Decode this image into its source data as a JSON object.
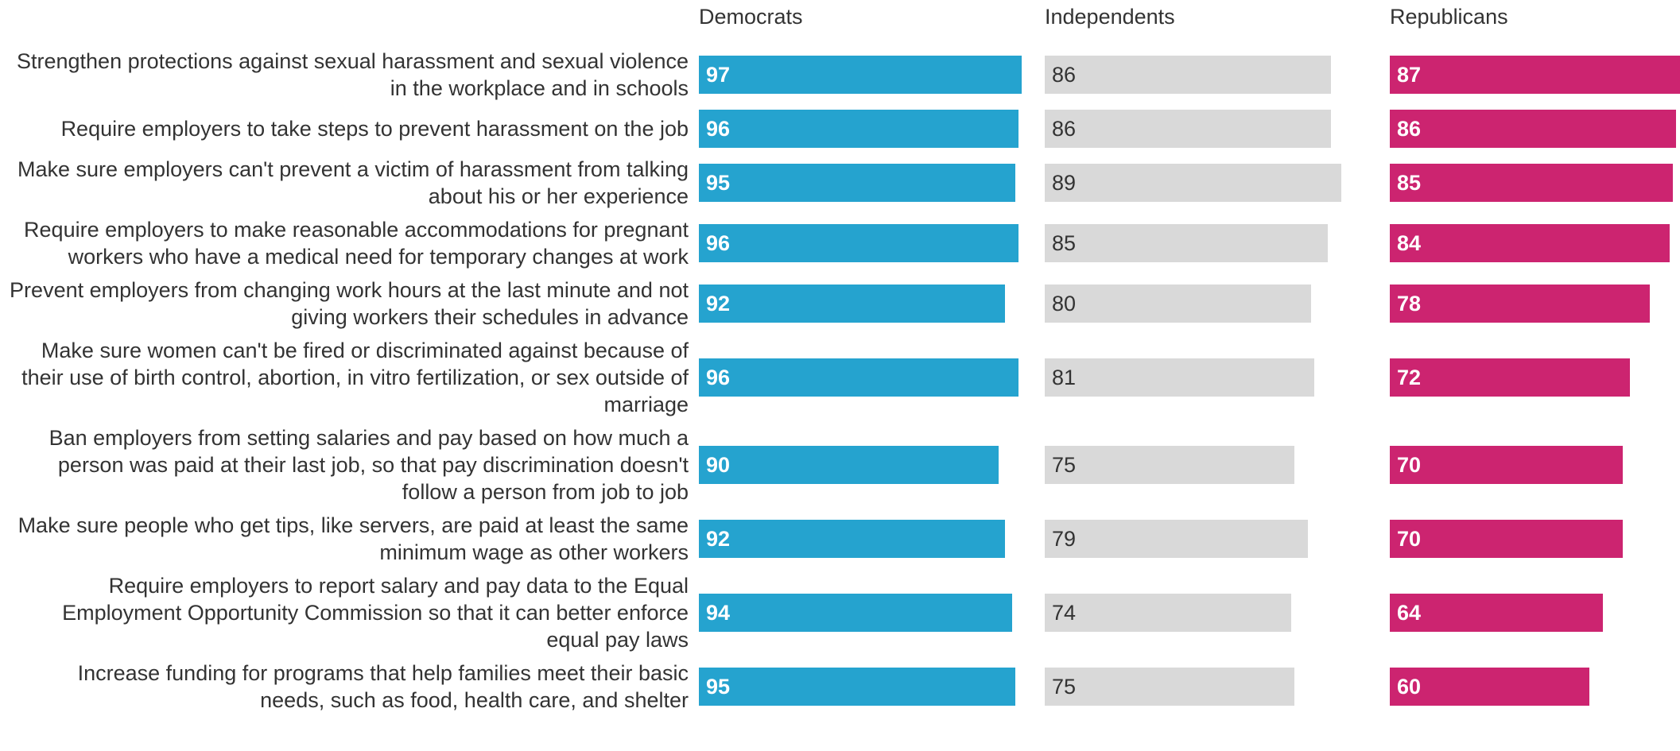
{
  "chart_data": {
    "type": "bar",
    "categories": [
      "Strengthen protections against sexual harassment and sexual violence in the workplace and in schools",
      "Require employers to take steps to prevent harassment on the job",
      "Make sure employers can't prevent a victim of harassment from talking about his or her experience",
      "Require employers to make reasonable accommodations for pregnant workers who have a medical need for temporary changes at work",
      "Prevent employers from changing work hours at the last minute and not giving workers their schedules in advance",
      "Make sure women can't be fired or discriminated against because of their use of birth control, abortion, in vitro fertilization, or sex outside of marriage",
      "Ban employers from setting salaries and pay based on how much a person was paid at their last job, so that pay discrimination doesn't follow a person from job to job",
      "Make sure people who get tips, like servers, are paid at least the same minimum wage as other workers",
      "Require employers to report salary and pay data to the Equal Employment Opportunity Commission so that it can better enforce equal pay laws",
      "Increase funding for programs that help families meet their basic needs, such as food, health care, and shelter"
    ],
    "series": [
      {
        "name": "Democrats",
        "color": "#25a3cf",
        "values": [
          97,
          96,
          95,
          96,
          92,
          96,
          90,
          92,
          94,
          95
        ]
      },
      {
        "name": "Independents",
        "color": "#d9d9d9",
        "values": [
          86,
          86,
          89,
          85,
          80,
          81,
          75,
          79,
          74,
          75
        ]
      },
      {
        "name": "Republicans",
        "color": "#cc2470",
        "values": [
          87,
          86,
          85,
          84,
          78,
          72,
          70,
          70,
          64,
          60
        ]
      }
    ]
  }
}
